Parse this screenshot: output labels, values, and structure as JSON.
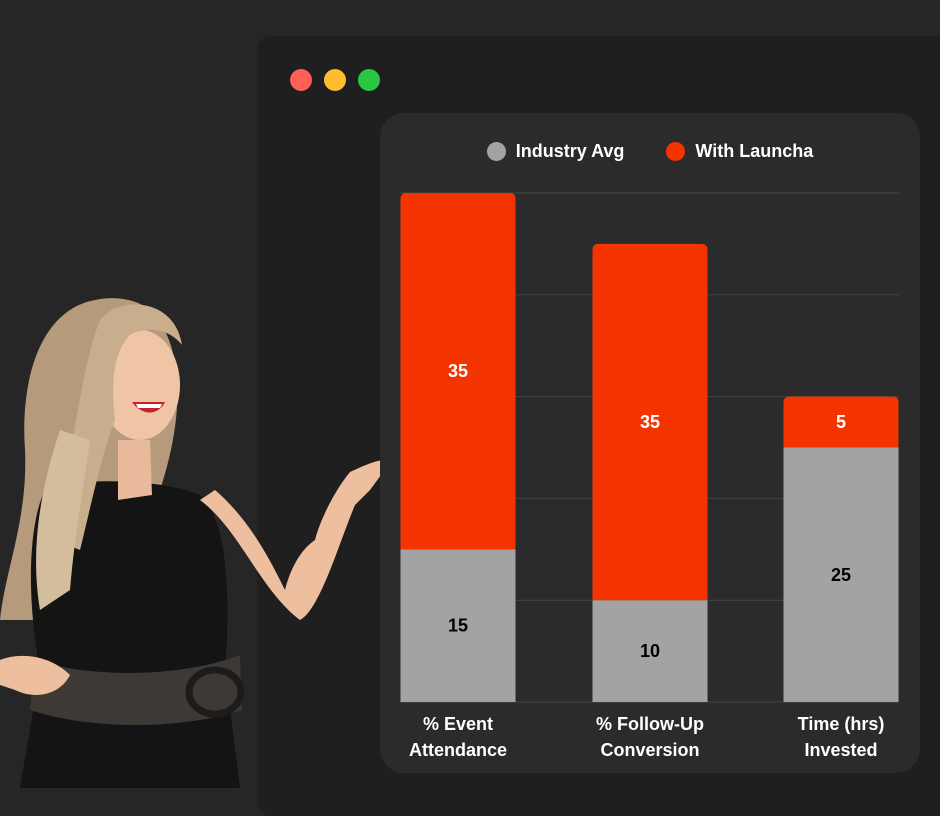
{
  "window": {
    "controls": [
      "close",
      "minimize",
      "maximize"
    ]
  },
  "colors": {
    "industry": "#a3a3a3",
    "launcha": "#f43400",
    "background": "#262626",
    "card": "#2b2b2b"
  },
  "chart_data": {
    "type": "bar",
    "stacked": true,
    "categories": [
      [
        "% Event",
        "Attendance"
      ],
      [
        "% Follow-Up",
        "Conversion"
      ],
      [
        "Time  (hrs)",
        "Invested"
      ]
    ],
    "series": [
      {
        "name": "Industry Avg",
        "values": [
          15,
          10,
          25
        ],
        "color": "#a3a3a3",
        "label_color": "#000000"
      },
      {
        "name": "With Launcha",
        "values": [
          35,
          35,
          5
        ],
        "color": "#f43400",
        "label_color": "#ffffff"
      }
    ],
    "ylim": [
      0,
      50
    ],
    "grid": true,
    "legend": "top-center"
  }
}
